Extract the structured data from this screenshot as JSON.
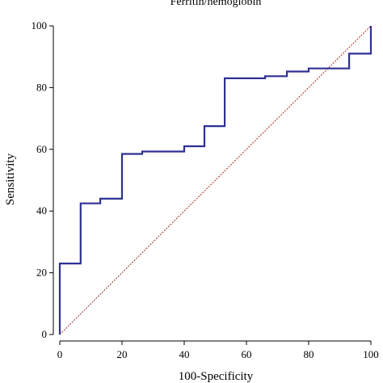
{
  "chart_data": {
    "type": "line",
    "title": "Ferritin/hemoglobin",
    "xlabel": "100-Specificity",
    "ylabel": "Sensitivity",
    "xlim": [
      0,
      100
    ],
    "ylim": [
      0,
      100
    ],
    "x_ticks": [
      "0",
      "20",
      "40",
      "60",
      "80",
      "100"
    ],
    "y_ticks": [
      "0",
      "20",
      "40",
      "60",
      "80",
      "100"
    ],
    "grid": false,
    "series": [
      {
        "type": "step",
        "color": "#2e3192",
        "points": [
          [
            0,
            0
          ],
          [
            0,
            23
          ],
          [
            6.7,
            23
          ],
          [
            6.7,
            42.5
          ],
          [
            13,
            42.5
          ],
          [
            13,
            44
          ],
          [
            20,
            44
          ],
          [
            20,
            58.5
          ],
          [
            26.5,
            58.5
          ],
          [
            26.5,
            59.3
          ],
          [
            40,
            59.3
          ],
          [
            40,
            61
          ],
          [
            46.5,
            61
          ],
          [
            46.5,
            67.5
          ],
          [
            53,
            67.5
          ],
          [
            53,
            83
          ],
          [
            66,
            83
          ],
          [
            66,
            83.7
          ],
          [
            73,
            83.7
          ],
          [
            73,
            85.2
          ],
          [
            80,
            85.2
          ],
          [
            80,
            86.2
          ],
          [
            93,
            86.2
          ],
          [
            93,
            91
          ],
          [
            100,
            91
          ],
          [
            100,
            100
          ]
        ]
      },
      {
        "type": "reference",
        "color": "#a52a2a",
        "points": [
          [
            0,
            0
          ],
          [
            100,
            100
          ]
        ]
      }
    ]
  }
}
